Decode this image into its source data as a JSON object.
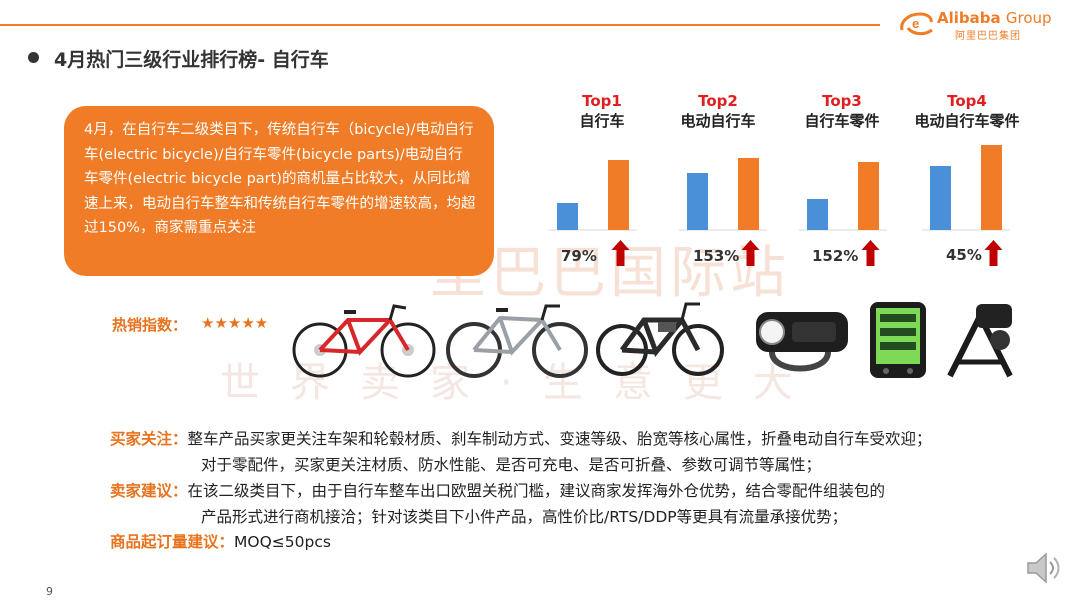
{
  "header": {
    "logo_en": "Alibaba",
    "logo_group": "Group",
    "logo_cn": "阿里巴巴集团",
    "accent": "#f07c27"
  },
  "title": "4月热门三级行业排行榜- 自行车",
  "summary": "4月，在自行车二级类目下，传统自行车（bicycle)/电动自行车(electric bicycle)/自行车零件(bicycle parts)/电动自行车零件(electric bicycle part)的商机量占比较大，从同比增速上来，电动自行车整车和传统自行车零件的增速较高，均超过150%，商家需重点关注",
  "watermark": {
    "line1": "里巴巴国际站",
    "line2": "世界卖家·生意更大"
  },
  "chart_data": {
    "type": "bar",
    "categories": [
      "自行车",
      "电动自行车",
      "自行车零件",
      "电动自行车零件"
    ],
    "ranks": [
      "Top1",
      "Top2",
      "Top3",
      "Top4"
    ],
    "series": [
      {
        "color": "#4a90d9",
        "values": [
          27,
          57,
          31,
          64
        ]
      },
      {
        "color": "#f07c27",
        "values": [
          70,
          72,
          68,
          85
        ]
      }
    ],
    "growth_labels": [
      "79%",
      "153%",
      "152%",
      "45%"
    ],
    "growth_direction": "up",
    "arrow_color": "#c00000"
  },
  "hot_sale": {
    "label": "热销指数：",
    "stars": "★★★★★"
  },
  "products": [
    "road-bike",
    "mountain-bike",
    "electric-bike",
    "bike-headlight",
    "bike-computer",
    "bike-trainer"
  ],
  "notes": {
    "buyer_label": "买家关注：",
    "buyer_line1": "整车产品买家更关注车架和轮毂材质、刹车制动方式、变速等级、胎宽等核心属性，折叠电动自行车受欢迎；",
    "buyer_line2": "对于零配件，买家更关注材质、防水性能、是否可充电、是否可折叠、参数可调节等属性；",
    "seller_label": "卖家建议：",
    "seller_line1": "在该二级类目下，由于自行车整车出口欧盟关税门槛，建议商家发挥海外仓优势，结合零配件组装包的",
    "seller_line2": "产品形式进行商机接洽；针对该类目下小件产品，高性价比/RTS/DDP等更具有流量承接优势；",
    "moq_label": "商品起订量建议：",
    "moq_value": "MOQ≤50pcs"
  },
  "page_number": "9"
}
